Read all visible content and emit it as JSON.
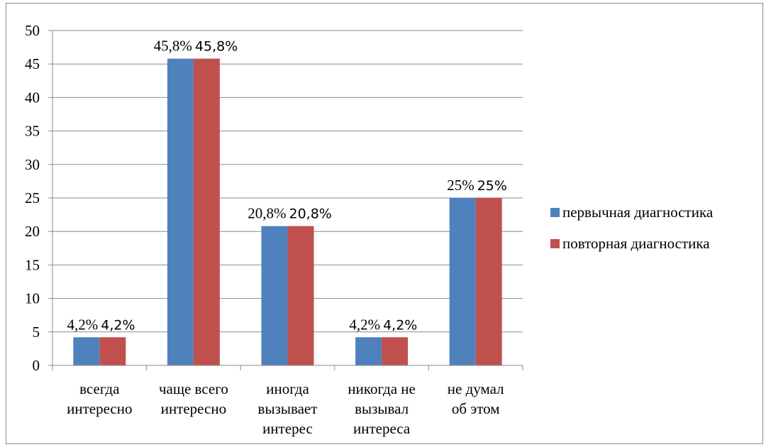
{
  "chart_data": {
    "type": "bar",
    "title": "",
    "xlabel": "",
    "ylabel": "",
    "ylim": [
      0,
      50
    ],
    "ytick_step": 5,
    "yticks": [
      "0",
      "5",
      "10",
      "15",
      "20",
      "25",
      "30",
      "35",
      "40",
      "45",
      "50"
    ],
    "grid": true,
    "legend_position": "right",
    "categories": [
      [
        "всегда",
        "интересно"
      ],
      [
        "чаще всего",
        "интересно"
      ],
      [
        "иногда",
        "вызывает",
        "интерес"
      ],
      [
        "никогда не",
        "вызывал",
        "интереса"
      ],
      [
        "не думал",
        "об этом"
      ]
    ],
    "series": [
      {
        "name": "первычная диагностика",
        "color": "#4f81bd",
        "values": [
          4.2,
          45.8,
          20.8,
          4.2,
          25
        ],
        "labels": [
          "4,2%",
          "45,8%",
          "20,8%",
          "4,2%",
          "25%"
        ]
      },
      {
        "name": "повторная диагностика",
        "color": "#c0504d",
        "values": [
          4.2,
          45.8,
          20.8,
          4.2,
          25
        ],
        "labels": [
          "4,2%",
          "45,8%",
          "20,8%",
          "4,2%",
          "25%"
        ]
      }
    ]
  }
}
